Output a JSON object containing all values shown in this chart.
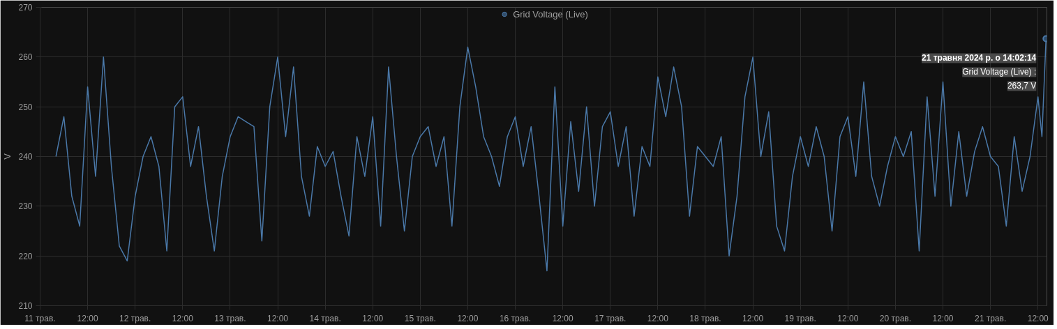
{
  "chart_data": {
    "type": "line",
    "ylabel": "V",
    "legend": "top",
    "grid": true,
    "marker": "none",
    "line_style": "solid",
    "x": [
      "2024-05-11T04:00",
      "2024-05-11T06:00",
      "2024-05-11T08:00",
      "2024-05-11T10:00",
      "2024-05-11T12:00",
      "2024-05-11T14:00",
      "2024-05-11T16:00",
      "2024-05-11T18:00",
      "2024-05-11T20:00",
      "2024-05-11T22:00",
      "2024-05-12T00:00",
      "2024-05-12T02:00",
      "2024-05-12T04:00",
      "2024-05-12T06:00",
      "2024-05-12T08:00",
      "2024-05-12T10:00",
      "2024-05-12T12:00",
      "2024-05-12T14:00",
      "2024-05-12T16:00",
      "2024-05-12T18:00",
      "2024-05-12T20:00",
      "2024-05-12T22:00",
      "2024-05-13T00:00",
      "2024-05-13T02:00",
      "2024-05-13T04:00",
      "2024-05-13T06:00",
      "2024-05-13T08:00",
      "2024-05-13T10:00",
      "2024-05-13T12:00",
      "2024-05-13T14:00",
      "2024-05-13T16:00",
      "2024-05-13T18:00",
      "2024-05-13T20:00",
      "2024-05-13T22:00",
      "2024-05-14T00:00",
      "2024-05-14T02:00",
      "2024-05-14T04:00",
      "2024-05-14T06:00",
      "2024-05-14T08:00",
      "2024-05-14T10:00",
      "2024-05-14T12:00",
      "2024-05-14T14:00",
      "2024-05-14T16:00",
      "2024-05-14T18:00",
      "2024-05-14T20:00",
      "2024-05-14T22:00",
      "2024-05-15T00:00",
      "2024-05-15T02:00",
      "2024-05-15T04:00",
      "2024-05-15T06:00",
      "2024-05-15T08:00",
      "2024-05-15T10:00",
      "2024-05-15T12:00",
      "2024-05-15T14:00",
      "2024-05-15T16:00",
      "2024-05-15T18:00",
      "2024-05-15T20:00",
      "2024-05-15T22:00",
      "2024-05-16T00:00",
      "2024-05-16T02:00",
      "2024-05-16T04:00",
      "2024-05-16T06:00",
      "2024-05-16T08:00",
      "2024-05-16T10:00",
      "2024-05-16T12:00",
      "2024-05-16T14:00",
      "2024-05-16T16:00",
      "2024-05-16T18:00",
      "2024-05-16T20:00",
      "2024-05-16T22:00",
      "2024-05-17T00:00",
      "2024-05-17T02:00",
      "2024-05-17T04:00",
      "2024-05-17T06:00",
      "2024-05-17T08:00",
      "2024-05-17T10:00",
      "2024-05-17T12:00",
      "2024-05-17T14:00",
      "2024-05-17T16:00",
      "2024-05-17T18:00",
      "2024-05-17T20:00",
      "2024-05-17T22:00",
      "2024-05-18T00:00",
      "2024-05-18T02:00",
      "2024-05-18T04:00",
      "2024-05-18T06:00",
      "2024-05-18T08:00",
      "2024-05-18T10:00",
      "2024-05-18T12:00",
      "2024-05-18T14:00",
      "2024-05-18T16:00",
      "2024-05-18T18:00",
      "2024-05-18T20:00",
      "2024-05-18T22:00",
      "2024-05-19T00:00",
      "2024-05-19T02:00",
      "2024-05-19T04:00",
      "2024-05-19T06:00",
      "2024-05-19T08:00",
      "2024-05-19T10:00",
      "2024-05-19T12:00",
      "2024-05-19T14:00",
      "2024-05-19T16:00",
      "2024-05-19T18:00",
      "2024-05-19T20:00",
      "2024-05-19T22:00",
      "2024-05-20T00:00",
      "2024-05-20T02:00",
      "2024-05-20T04:00",
      "2024-05-20T06:00",
      "2024-05-20T08:00",
      "2024-05-20T10:00",
      "2024-05-20T12:00",
      "2024-05-20T14:00",
      "2024-05-20T16:00",
      "2024-05-20T18:00",
      "2024-05-20T20:00",
      "2024-05-20T22:00",
      "2024-05-21T00:00",
      "2024-05-21T02:00",
      "2024-05-21T04:00",
      "2024-05-21T06:00",
      "2024-05-21T08:00",
      "2024-05-21T10:00",
      "2024-05-21T12:00",
      "2024-05-21T13:00",
      "2024-05-21T14:02"
    ],
    "series": [
      {
        "name": "Grid Voltage (Live)",
        "color": "#4a78a8",
        "values": [
          240,
          248,
          232,
          226,
          254,
          236,
          260,
          238,
          222,
          219,
          232,
          240,
          244,
          238,
          221,
          250,
          252,
          238,
          246,
          232,
          221,
          236,
          244,
          248,
          247,
          246,
          223,
          250,
          260,
          244,
          258,
          236,
          228,
          242,
          238,
          241,
          232,
          224,
          244,
          236,
          248,
          226,
          258,
          240,
          225,
          240,
          244,
          246,
          238,
          244,
          226,
          250,
          262,
          254,
          244,
          240,
          234,
          244,
          248,
          238,
          246,
          232,
          217,
          254,
          226,
          247,
          233,
          250,
          230,
          246,
          249,
          238,
          246,
          228,
          242,
          238,
          256,
          248,
          258,
          250,
          228,
          242,
          240,
          238,
          244,
          220,
          232,
          252,
          260,
          240,
          249,
          226,
          221,
          236,
          244,
          238,
          246,
          240,
          225,
          244,
          248,
          236,
          255,
          236,
          230,
          238,
          244,
          240,
          245,
          221,
          252,
          232,
          255,
          230,
          245,
          232,
          241,
          246,
          240,
          238,
          226,
          244,
          233,
          240,
          252,
          244,
          263.7
        ]
      }
    ],
    "xlim": [
      "2024-05-11T00:00",
      "2024-05-21T14:15"
    ],
    "xticks": [
      {
        "value": "2024-05-11T00:00",
        "label": "11 трав."
      },
      {
        "value": "2024-05-11T12:00",
        "label": "12:00"
      },
      {
        "value": "2024-05-12T00:00",
        "label": "12 трав."
      },
      {
        "value": "2024-05-12T12:00",
        "label": "12:00"
      },
      {
        "value": "2024-05-13T00:00",
        "label": "13 трав."
      },
      {
        "value": "2024-05-13T12:00",
        "label": "12:00"
      },
      {
        "value": "2024-05-14T00:00",
        "label": "14 трав."
      },
      {
        "value": "2024-05-14T12:00",
        "label": "12:00"
      },
      {
        "value": "2024-05-15T00:00",
        "label": "15 трав."
      },
      {
        "value": "2024-05-15T12:00",
        "label": "12:00"
      },
      {
        "value": "2024-05-16T00:00",
        "label": "16 трав."
      },
      {
        "value": "2024-05-16T12:00",
        "label": "12:00"
      },
      {
        "value": "2024-05-17T00:00",
        "label": "17 трав."
      },
      {
        "value": "2024-05-17T12:00",
        "label": "12:00"
      },
      {
        "value": "2024-05-18T00:00",
        "label": "18 трав."
      },
      {
        "value": "2024-05-18T12:00",
        "label": "12:00"
      },
      {
        "value": "2024-05-19T00:00",
        "label": "19 трав."
      },
      {
        "value": "2024-05-19T12:00",
        "label": "12:00"
      },
      {
        "value": "2024-05-20T00:00",
        "label": "20 трав."
      },
      {
        "value": "2024-05-20T12:00",
        "label": "12:00"
      },
      {
        "value": "2024-05-21T00:00",
        "label": "21 трав."
      },
      {
        "value": "2024-05-21T12:00",
        "label": "12:00"
      }
    ],
    "ylim": [
      210,
      270
    ],
    "yticks": [
      210,
      220,
      230,
      240,
      250,
      260,
      270
    ],
    "annotations": [
      {
        "text": "21 травня 2024 р. о 14:02:14\nGrid Voltage (Live) :\n263,7 V",
        "x": "2024-05-21T14:02",
        "y": 263.7
      }
    ]
  }
}
